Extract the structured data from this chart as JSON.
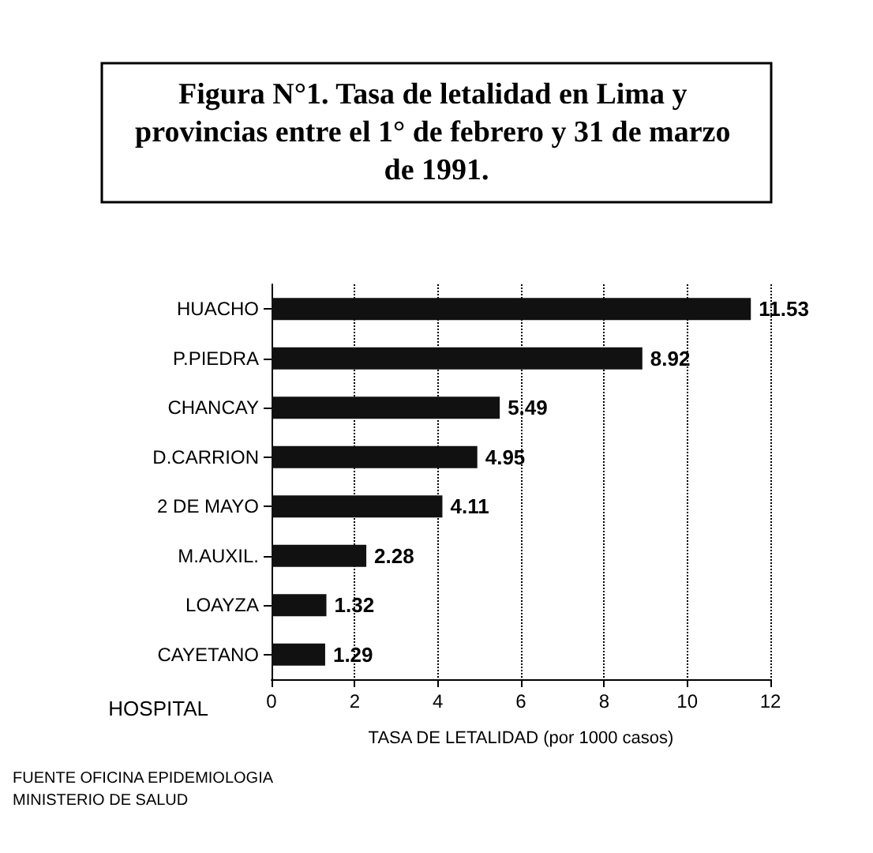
{
  "chart_data": {
    "type": "bar",
    "orientation": "horizontal",
    "title": "Figura N°1. Tasa de letalidad en Lima y provincias entre el 1° de febrero y 31 de marzo de 1991.",
    "ylabel": "HOSPITAL",
    "xlabel": "TASA DE LETALIDAD (por 1000 casos)",
    "categories": [
      "HUACHO",
      "P.PIEDRA",
      "CHANCAY",
      "D.CARRION",
      "2 DE MAYO",
      "M.AUXIL.",
      "LOAYZA",
      "CAYETANO"
    ],
    "values": [
      11.53,
      8.92,
      5.49,
      4.95,
      4.11,
      2.28,
      1.32,
      1.29
    ],
    "color": "#111111",
    "data_labels": true,
    "xlim": [
      0,
      12
    ],
    "xticks": [
      0,
      2,
      4,
      6,
      8,
      10,
      12
    ],
    "grid": "x",
    "annotations": [
      "FUENTE OFICINA EPIDEMIOLOGIA",
      "MINISTERIO DE SALUD"
    ]
  }
}
